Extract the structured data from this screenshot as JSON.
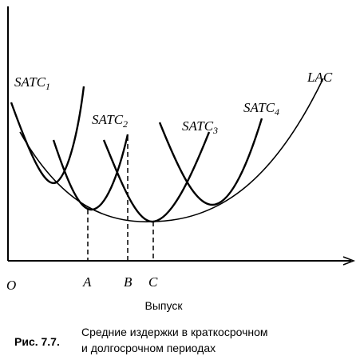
{
  "curves": [
    {
      "name": "SATC",
      "sub": "1"
    },
    {
      "name": "SATC",
      "sub": "2"
    },
    {
      "name": "SATC",
      "sub": "3"
    },
    {
      "name": "SATC",
      "sub": "4"
    },
    {
      "name": "LAC"
    }
  ],
  "axis": {
    "origin": "O",
    "points": [
      "A",
      "B",
      "C"
    ],
    "x_label": "Выпуск"
  },
  "caption": {
    "number": "Рис. 7.7.",
    "lines": [
      "Средние издержки в краткосрочном",
      "и долгосрочном периодах"
    ]
  }
}
